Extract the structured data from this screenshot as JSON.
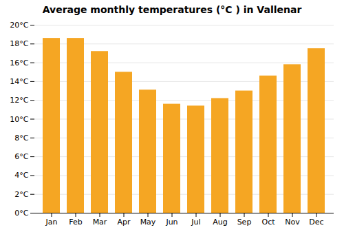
{
  "chart_data": {
    "type": "bar",
    "title": "Average monthly temperatures (°C ) in Vallenar",
    "categories": [
      "Jan",
      "Feb",
      "Mar",
      "Apr",
      "May",
      "Jun",
      "Jul",
      "Aug",
      "Sep",
      "Oct",
      "Nov",
      "Dec"
    ],
    "values": [
      18.6,
      18.6,
      17.2,
      15.0,
      13.1,
      11.6,
      11.4,
      12.2,
      13.0,
      14.6,
      15.8,
      17.5
    ],
    "color": "#F5A623",
    "ylim": [
      0,
      20
    ],
    "yticks": [
      {
        "value": 0,
        "label": "0°C"
      },
      {
        "value": 2,
        "label": "2°C"
      },
      {
        "value": 4,
        "label": "4°C"
      },
      {
        "value": 6,
        "label": "6°C"
      },
      {
        "value": 8,
        "label": "8°C"
      },
      {
        "value": 10,
        "label": "10°C"
      },
      {
        "value": 12,
        "label": "12°C"
      },
      {
        "value": 14,
        "label": "14°C"
      },
      {
        "value": 16,
        "label": "16°C"
      },
      {
        "value": 18,
        "label": "18°C"
      },
      {
        "value": 20,
        "label": "20°C"
      }
    ],
    "grid": true
  }
}
